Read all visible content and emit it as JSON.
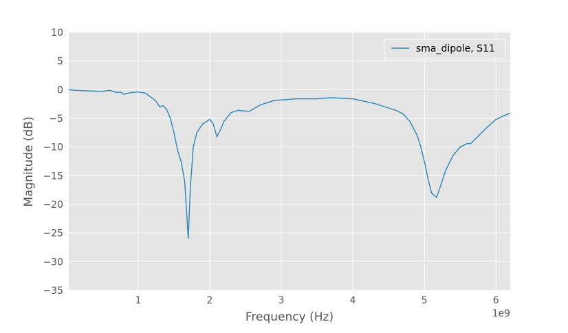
{
  "chart_data": {
    "type": "line",
    "x_label": "Frequency (Hz)",
    "y_label": "Magnitude (dB)",
    "x_offset_label": "1e9",
    "xlim": [
      30000000.0,
      6200000000.0
    ],
    "ylim": [
      -35,
      10
    ],
    "xticks": [
      {
        "value": 1000000000.0,
        "label": "1"
      },
      {
        "value": 2000000000.0,
        "label": "2"
      },
      {
        "value": 3000000000.0,
        "label": "3"
      },
      {
        "value": 4000000000.0,
        "label": "4"
      },
      {
        "value": 5000000000.0,
        "label": "5"
      },
      {
        "value": 6000000000.0,
        "label": "6"
      }
    ],
    "yticks": [
      {
        "value": -35,
        "label": "−35"
      },
      {
        "value": -30,
        "label": "−30"
      },
      {
        "value": -25,
        "label": "−25"
      },
      {
        "value": -20,
        "label": "−20"
      },
      {
        "value": -15,
        "label": "−15"
      },
      {
        "value": -10,
        "label": "−10"
      },
      {
        "value": -5,
        "label": "−5"
      },
      0,
      5,
      10
    ],
    "grid": true,
    "legend": "upper right",
    "x": [
      30000000.0,
      100000000.0,
      300000000.0,
      500000000.0,
      600000000.0,
      700000000.0,
      750000000.0,
      800000000.0,
      900000000.0,
      1000000000.0,
      1100000000.0,
      1200000000.0,
      1250000000.0,
      1300000000.0,
      1350000000.0,
      1400000000.0,
      1450000000.0,
      1500000000.0,
      1550000000.0,
      1600000000.0,
      1650000000.0,
      1700000000.0,
      1730000000.0,
      1770000000.0,
      1820000000.0,
      1900000000.0,
      2000000000.0,
      2050000000.0,
      2100000000.0,
      2150000000.0,
      2200000000.0,
      2300000000.0,
      2400000000.0,
      2550000000.0,
      2700000000.0,
      2900000000.0,
      3200000000.0,
      3500000000.0,
      3700000000.0,
      4000000000.0,
      4300000000.0,
      4600000000.0,
      4700000000.0,
      4800000000.0,
      4900000000.0,
      4950000000.0,
      5000000000.0,
      5050000000.0,
      5100000000.0,
      5170000000.0,
      5220000000.0,
      5300000000.0,
      5380000000.0,
      5400000000.0,
      5500000000.0,
      5600000000.0,
      5650000000.0,
      5800000000.0,
      5900000000.0,
      6000000000.0,
      6100000000.0,
      6200000000.0
    ],
    "series": [
      {
        "name": "sma_dipole, S11",
        "color": "#348abd",
        "values": [
          0,
          -0.1,
          -0.2,
          -0.3,
          -0.1,
          -0.5,
          -0.4,
          -0.8,
          -0.5,
          -0.4,
          -0.6,
          -1.5,
          -2,
          -3,
          -2.8,
          -3.5,
          -5,
          -7.5,
          -10.5,
          -12.5,
          -16,
          -26,
          -17,
          -10,
          -7.5,
          -6,
          -5.2,
          -6,
          -8.2,
          -7,
          -5.5,
          -4,
          -3.6,
          -3.8,
          -2.7,
          -1.9,
          -1.6,
          -1.6,
          -1.4,
          -1.6,
          -2.4,
          -3.6,
          -4.2,
          -5.6,
          -8,
          -10,
          -12.5,
          -15.5,
          -18,
          -18.8,
          -17,
          -14,
          -12,
          -11.5,
          -10,
          -9.4,
          -9.4,
          -7.5,
          -6.3,
          -5.2,
          -4.6,
          -4.1
        ]
      }
    ]
  }
}
